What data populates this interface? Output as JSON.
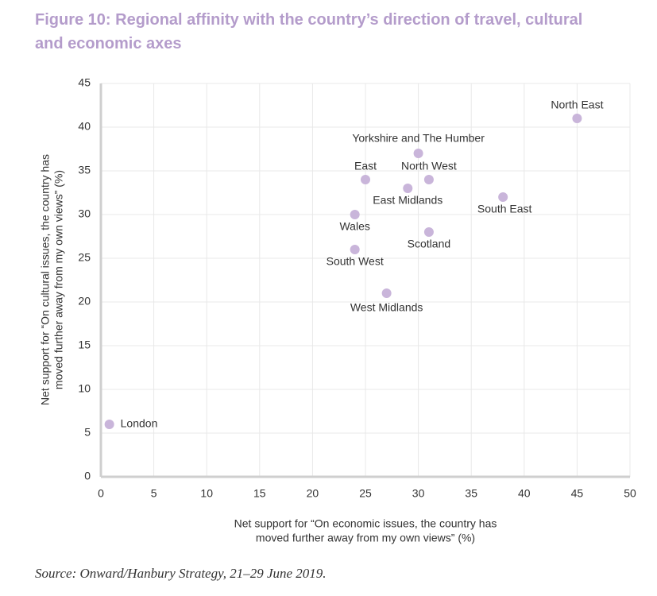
{
  "chart_data": {
    "type": "scatter",
    "title": "Figure 10: Regional affinity with the country’s direction of travel, cultural and economic axes",
    "xlabel": [
      "Net support for “On economic issues, the country has",
      "moved further away from my own views” (%)"
    ],
    "ylabel": [
      "Net support for “On cultural issues, the country has",
      "moved further away from my own views” (%)"
    ],
    "source": "Source: Onward/Hanbury Strategy, 21–29 June 2019.",
    "color": "#c9b5da",
    "xlim": [
      0,
      50
    ],
    "xticks": [
      0,
      5,
      10,
      15,
      20,
      25,
      30,
      35,
      40,
      45,
      50
    ],
    "ylim": [
      0,
      45
    ],
    "yticks": [
      0,
      5,
      10,
      15,
      20,
      25,
      30,
      35,
      40,
      45
    ],
    "grid": true,
    "labels": [
      "London",
      "North East",
      "Yorkshire and The Humber",
      "East",
      "North West",
      "East Midlands",
      "South East",
      "Wales",
      "Scotland",
      "South West",
      "West Midlands"
    ],
    "x": [
      0.8,
      45,
      30,
      25,
      31,
      29,
      38,
      24,
      31,
      24,
      27
    ],
    "y": [
      6,
      41,
      37,
      34,
      34,
      33,
      32,
      30,
      28,
      26,
      21
    ]
  }
}
